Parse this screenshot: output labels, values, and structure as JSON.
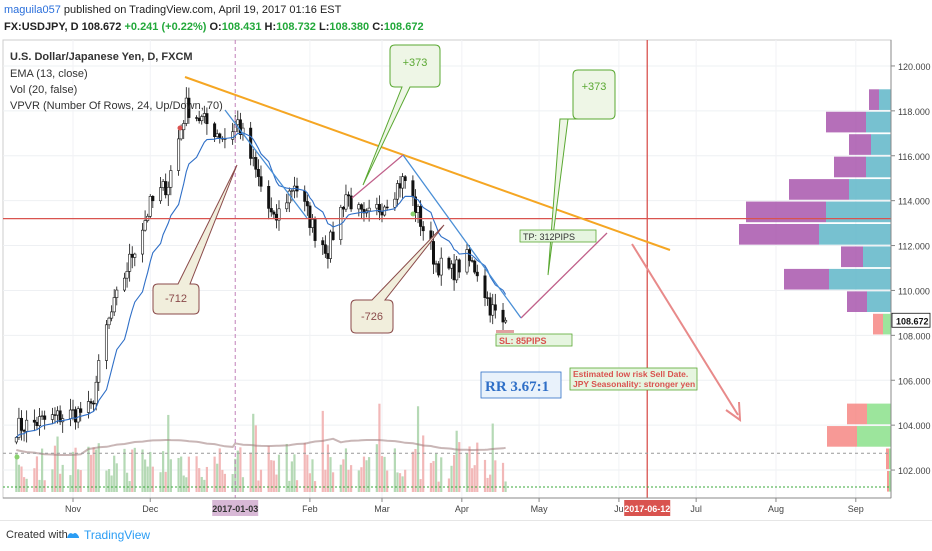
{
  "header": {
    "author": "maguila057",
    "published_text": " published on TradingView.com, April 19, 2017 01:16 EST",
    "symbol": "FX:USDJPY, D",
    "price": "108.672",
    "change": "+0.241 (+0.22%)",
    "o_label": "O:",
    "o_value": "108.431",
    "h_label": "H:",
    "h_value": "108.732",
    "l_label": "L:",
    "l_value": "108.380",
    "c_label": "C:",
    "c_value": "108.672"
  },
  "legend": {
    "line1": "U.S. Dollar/Japanese Yen, D, FXCM",
    "line2": "EMA (13, close)",
    "line3": "Vol (20, false)",
    "line4": "VPVR (Number Of Rows, 24, Up/Down, 70)"
  },
  "annotations": {
    "callout_a": "+373",
    "callout_b": "+373",
    "callout_c": "-712",
    "callout_d": "-726",
    "tp": "TP: 312PIPS",
    "sl": "SL: 85PIPS",
    "rr": "RR 3.67:1",
    "note1": "Estimated low risk Sell Date.",
    "note2": "JPY Seasonality: stronger yen"
  },
  "time_markers": {
    "left": "2017-01-03",
    "right": "2017-06-12"
  },
  "current_price_label": "108.672",
  "footer": {
    "created": "Created with",
    "brand": "TradingView"
  },
  "colors": {
    "trendline": "#f5a623",
    "red_lines": "#d9534f",
    "ema": "#2f6fc7",
    "up_bar": "#b5d9b5",
    "down_bar": "#f2b8b8",
    "vpvr_up": "#5fb6c8",
    "vpvr_down": "#a24ba8",
    "callout_green": "#5aa832",
    "callout_brown": "#8a4a4a"
  },
  "chart_data": {
    "type": "candlestick",
    "title": "U.S. Dollar/Japanese Yen, D, FXCM",
    "y_axis_ticks": [
      102,
      104,
      106,
      108,
      110,
      112,
      114,
      116,
      118,
      120
    ],
    "ylim": [
      101,
      120.5
    ],
    "x_tick_labels": [
      "Nov",
      "Dec",
      "2017-01-03",
      "Feb",
      "Mar",
      "Apr",
      "May",
      "Ju",
      "2017-06-12",
      "Jul",
      "Aug",
      "Sep"
    ],
    "horizontal_line_value": 113.2,
    "last_price": 108.672,
    "series_anchors": [
      {
        "date": "Oct 10",
        "value": 103.9
      },
      {
        "date": "Oct 24",
        "value": 104.3
      },
      {
        "date": "Nov 08",
        "value": 104.7
      },
      {
        "date": "Nov 14",
        "value": 108.3
      },
      {
        "date": "Nov 22",
        "value": 111.0
      },
      {
        "date": "Dec 01",
        "value": 113.8
      },
      {
        "date": "Dec 08",
        "value": 114.8
      },
      {
        "date": "Dec 15",
        "value": 118.2
      },
      {
        "date": "Dec 22",
        "value": 117.5
      },
      {
        "date": "Dec 30",
        "value": 116.8
      },
      {
        "date": "Jan 04",
        "value": 117.5
      },
      {
        "date": "Jan 10",
        "value": 115.6
      },
      {
        "date": "Jan 18",
        "value": 113.0
      },
      {
        "date": "Jan 26",
        "value": 114.8
      },
      {
        "date": "Feb 03",
        "value": 112.6
      },
      {
        "date": "Feb 08",
        "value": 111.8
      },
      {
        "date": "Feb 15",
        "value": 114.3
      },
      {
        "date": "Feb 22",
        "value": 113.1
      },
      {
        "date": "Mar 01",
        "value": 113.8
      },
      {
        "date": "Mar 08",
        "value": 114.8
      },
      {
        "date": "Mar 10",
        "value": 114.9
      },
      {
        "date": "Mar 15",
        "value": 113.4
      },
      {
        "date": "Mar 22",
        "value": 111.2
      },
      {
        "date": "Mar 28",
        "value": 110.8
      },
      {
        "date": "Apr 03",
        "value": 111.4
      },
      {
        "date": "Apr 07",
        "value": 110.9
      },
      {
        "date": "Apr 12",
        "value": 109.3
      },
      {
        "date": "Apr 17",
        "value": 108.4
      },
      {
        "date": "Apr 18",
        "value": 108.672
      }
    ]
  }
}
